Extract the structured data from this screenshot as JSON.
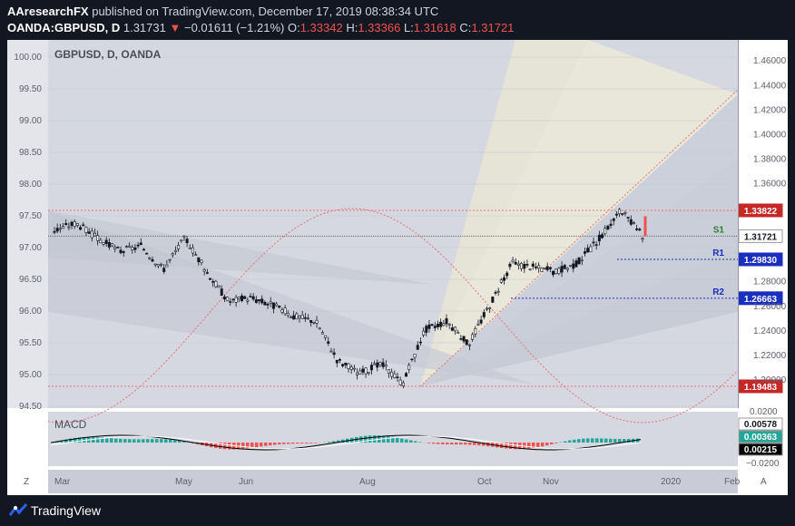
{
  "header": {
    "author": "AAresearchFX",
    "published_text": " published on TradingView.com, December 17, 2019 08:38:34 UTC",
    "symbol": "OANDA:GBPUSD, D",
    "last": "1.31731",
    "change_arrow": "▼",
    "change": "−0.01611 (−1.21%)",
    "o_label": "O:",
    "o_value": "1.33342",
    "h_label": "H:",
    "h_value": "1.33366",
    "l_label": "L:",
    "l_value": "1.31618",
    "c_label": "C:",
    "c_value": "1.31721"
  },
  "footer": {
    "brand": "TradingView"
  },
  "chart_data": {
    "type": "candlestick",
    "title": "GBPUSD, D, OANDA",
    "x_labels": [
      "Mar",
      "May",
      "Jun",
      "Aug",
      "Oct",
      "Nov",
      "2020",
      "Feb"
    ],
    "left_axis": {
      "ticks": [
        "100.00",
        "99.50",
        "99.00",
        "98.50",
        "98.00",
        "97.50",
        "97.00",
        "96.50",
        "96.00",
        "95.50",
        "95.00",
        "94.50"
      ],
      "ylim": [
        94.5,
        100.0
      ]
    },
    "right_axis": {
      "ticks": [
        "1.46000",
        "1.44000",
        "1.42000",
        "1.40000",
        "1.38000",
        "1.36000",
        "1.28000",
        "1.26000",
        "1.24000",
        "1.22000",
        "1.20000"
      ],
      "ylim": [
        1.186,
        1.47
      ]
    },
    "price_path": [
      [
        "Feb 28",
        1.322
      ],
      [
        "Mar 13",
        1.328
      ],
      [
        "Mar 20",
        1.315
      ],
      [
        "Apr 1",
        1.305
      ],
      [
        "Apr 15",
        1.309
      ],
      [
        "Apr 25",
        1.29
      ],
      [
        "May 3",
        1.316
      ],
      [
        "May 15",
        1.288
      ],
      [
        "Jun 1",
        1.264
      ],
      [
        "Jun 14",
        1.267
      ],
      [
        "Jul 1",
        1.261
      ],
      [
        "Jul 10",
        1.252
      ],
      [
        "Jul 25",
        1.248
      ],
      [
        "Aug 1",
        1.216
      ],
      [
        "Aug 12",
        1.205
      ],
      [
        "Aug 20",
        1.213
      ],
      [
        "Sep 3",
        1.197
      ],
      [
        "Sep 13",
        1.241
      ],
      [
        "Sep 20",
        1.248
      ],
      [
        "Oct 1",
        1.229
      ],
      [
        "Oct 11",
        1.262
      ],
      [
        "Oct 21",
        1.295
      ],
      [
        "Nov 1",
        1.292
      ],
      [
        "Nov 15",
        1.288
      ],
      [
        "Nov 29",
        1.295
      ],
      [
        "Dec 6",
        1.315
      ],
      [
        "Dec 13",
        1.338
      ],
      [
        "Dec 17",
        1.3172
      ]
    ],
    "horizontal_levels": [
      {
        "name": "",
        "value": "1.33822",
        "tag_color": "#c62828"
      },
      {
        "name": "S1",
        "value": "1.31721",
        "tag_color": "#ffffff"
      },
      {
        "name": "R1",
        "value": "1.29830",
        "tag_color": "#1a2ec0"
      },
      {
        "name": "R2",
        "value": "1.26663",
        "tag_color": "#1a2ec0"
      },
      {
        "name": "",
        "value": "1.19483",
        "tag_color": "#c62828"
      }
    ],
    "macd": {
      "label": "MACD",
      "values": [
        "0.00578",
        "0.00363",
        "0.00215",
        "−0.0200"
      ],
      "ticks": [
        "0.0200",
        "−0.0200"
      ]
    }
  }
}
